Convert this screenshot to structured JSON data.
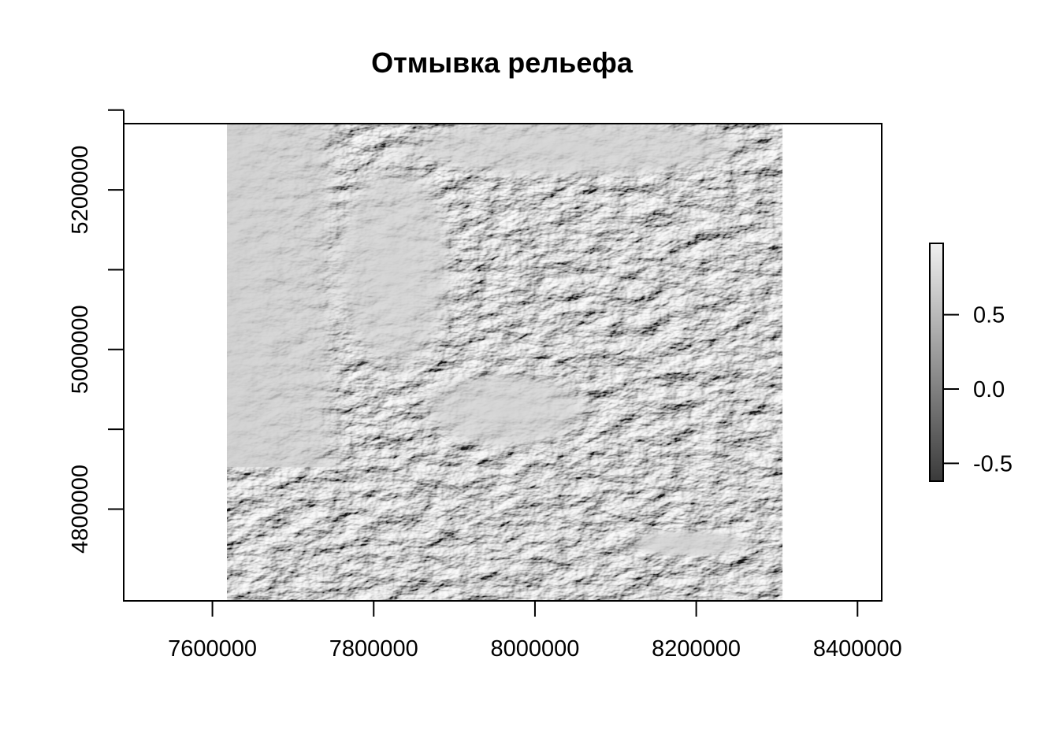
{
  "chart_data": {
    "type": "heatmap",
    "title": "Отмывка рельефа",
    "xlabel": "",
    "ylabel": "",
    "colormap": "grayscale",
    "xlim": [
      7490000,
      8430000
    ],
    "ylim": [
      4685000,
      5283000
    ],
    "raster_extent": {
      "x": [
        7618000,
        8307000
      ],
      "y": [
        4685000,
        5283000
      ]
    },
    "x_ticks": [
      7600000,
      7800000,
      8000000,
      8200000,
      8400000
    ],
    "x_tick_labels": [
      "7600000",
      "7800000",
      "8000000",
      "8200000",
      "8400000"
    ],
    "y_ticks": [
      4800000,
      4900000,
      5000000,
      5100000,
      5200000,
      5300000
    ],
    "y_tick_labels": [
      "4800000",
      "",
      "5000000",
      "",
      "5200000",
      ""
    ],
    "legend": {
      "placement": "right",
      "range": [
        -0.62,
        0.98
      ],
      "ticks": [
        -0.5,
        0.0,
        0.5
      ],
      "tick_labels": [
        "-0.5",
        "0.0",
        "0.5"
      ]
    },
    "colors": {
      "low": "#3a3a3a",
      "high": "#f0f0f0",
      "flat": "#d0d0d0"
    }
  }
}
